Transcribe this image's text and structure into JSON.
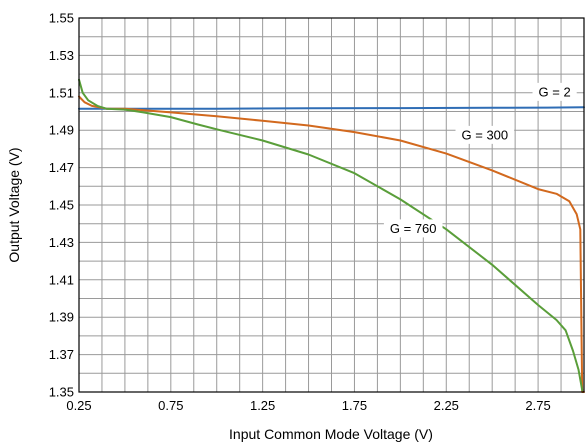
{
  "chart_data": {
    "type": "line",
    "title": "",
    "xlabel": "Input Common Mode Voltage (V)",
    "ylabel": "Output Voltage (V)",
    "xlim": [
      0.25,
      3.0
    ],
    "ylim": [
      1.35,
      1.55
    ],
    "grid": true,
    "x_ticks": [
      "0.25",
      "0.75",
      "1.25",
      "1.75",
      "2.25",
      "2.75"
    ],
    "y_ticks": [
      "1.35",
      "1.37",
      "1.39",
      "1.41",
      "1.43",
      "1.45",
      "1.47",
      "1.49",
      "1.51",
      "1.53",
      "1.55"
    ],
    "series": [
      {
        "name": "G = 2",
        "color": "#2f6db5",
        "label_at": [
          2.84,
          1.5105
        ],
        "x": [
          0.25,
          0.5,
          1.0,
          1.5,
          2.0,
          2.5,
          2.8,
          3.0
        ],
        "y": [
          1.5015,
          1.5015,
          1.5015,
          1.5017,
          1.5018,
          1.502,
          1.5021,
          1.5023
        ]
      },
      {
        "name": "G = 300",
        "color": "#d2691e",
        "label_at": [
          2.46,
          1.4875
        ],
        "x": [
          0.25,
          0.28,
          0.32,
          0.4,
          0.5,
          0.75,
          1.0,
          1.25,
          1.5,
          1.75,
          2.0,
          2.25,
          2.5,
          2.75,
          2.85,
          2.92,
          2.96,
          2.98,
          2.99,
          3.0
        ],
        "y": [
          1.508,
          1.505,
          1.503,
          1.5015,
          1.5015,
          1.4995,
          1.4975,
          1.495,
          1.4925,
          1.489,
          1.4845,
          1.4775,
          1.4685,
          1.4585,
          1.456,
          1.452,
          1.445,
          1.437,
          1.35,
          1.35
        ]
      },
      {
        "name": "G = 760",
        "color": "#5a9e3a",
        "label_at": [
          2.07,
          1.4375
        ],
        "x": [
          0.25,
          0.27,
          0.3,
          0.35,
          0.4,
          0.5,
          0.6,
          0.75,
          0.9,
          1.0,
          1.25,
          1.5,
          1.75,
          2.0,
          2.25,
          2.5,
          2.75,
          2.85,
          2.9,
          2.94,
          2.97,
          2.99
        ],
        "y": [
          1.517,
          1.51,
          1.506,
          1.503,
          1.5015,
          1.501,
          1.4995,
          1.497,
          1.493,
          1.4905,
          1.4845,
          1.477,
          1.467,
          1.453,
          1.437,
          1.418,
          1.3965,
          1.3885,
          1.383,
          1.372,
          1.362,
          1.351
        ]
      }
    ]
  }
}
